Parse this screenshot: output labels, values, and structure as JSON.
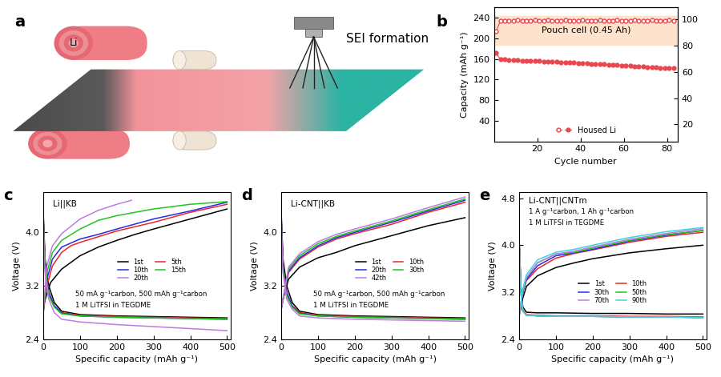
{
  "diagram": {
    "panel": "a",
    "roll_label": "Li",
    "process_label": "SEI formation"
  },
  "chart_data": [
    {
      "panel": "b",
      "type": "line",
      "x_label": "Cycle number",
      "y_label": "Capacity (mAh g⁻¹)",
      "annotations": [
        "Pouch cell (0.45 Ah)"
      ],
      "shaded_range": [
        188,
        244
      ],
      "xlim": [
        0,
        85
      ],
      "xticks": [
        20,
        40,
        60,
        80
      ],
      "ylim": [
        0,
        260
      ],
      "yticks": [
        40,
        80,
        120,
        160,
        200,
        240
      ],
      "y2lim": [
        7,
        109
      ],
      "y2ticks": [
        20,
        40,
        60,
        80,
        100
      ],
      "legend": "lower center",
      "x": [
        1,
        3,
        5,
        7,
        9,
        11,
        13,
        15,
        17,
        19,
        21,
        23,
        25,
        27,
        29,
        31,
        33,
        35,
        37,
        39,
        41,
        43,
        45,
        47,
        49,
        51,
        53,
        55,
        57,
        59,
        61,
        63,
        65,
        67,
        69,
        71,
        73,
        75,
        77,
        79,
        81,
        83
      ],
      "series": [
        {
          "name": "Housed Li",
          "color": "#e8474f",
          "marker": "circle",
          "values": [
            172,
            159,
            159,
            158,
            158,
            157.5,
            157,
            157,
            156.5,
            156,
            156,
            155.5,
            155,
            155,
            154.5,
            154,
            153.5,
            153,
            153,
            152.5,
            152,
            151.5,
            151,
            150.5,
            150,
            149.5,
            149,
            148.5,
            148,
            147.5,
            147,
            146.5,
            146,
            145.5,
            145,
            144.5,
            144,
            143.5,
            143,
            142.5,
            142,
            142
          ]
        },
        {
          "axis": "y2",
          "color": "#e8474f",
          "marker": "open_circle",
          "values": [
            91,
            98.6,
            99.0,
            99.1,
            99.0,
            99.2,
            99.1,
            99.0,
            99.1,
            99.2,
            99.0,
            99.1,
            99.2,
            99.0,
            99.1,
            99.0,
            99.2,
            99.1,
            99.0,
            99.1,
            99.2,
            99.0,
            99.1,
            99.0,
            99.2,
            99.1,
            99.0,
            99.1,
            99.2,
            99.0,
            99.1,
            99.0,
            99.2,
            99.1,
            99.0,
            99.1,
            99.2,
            99.0,
            99.1,
            99.0,
            99.2,
            99.1
          ]
        }
      ]
    },
    {
      "panel": "c",
      "type": "line",
      "title": "Li||KB",
      "annotations": [
        "50 mA g⁻¹carbon, 500 mAh g⁻¹carbon",
        "1 M LiTFSI in TEGDME"
      ],
      "x_label": "Specific capacity (mAh g⁻¹)",
      "y_label": "Voltage (V)",
      "xlim": [
        0,
        510
      ],
      "xticks": [
        0,
        100,
        200,
        300,
        400,
        500
      ],
      "ylim": [
        2.4,
        4.6
      ],
      "yticks": [
        2.4,
        3.2,
        4.0
      ],
      "legend": "center",
      "series": [
        {
          "name": "1st",
          "color": "#000000",
          "x": [
            0,
            5,
            15,
            30,
            50,
            100,
            200,
            300,
            400,
            500,
            null,
            0,
            20,
            50,
            100,
            150,
            200,
            250,
            300,
            400,
            500
          ],
          "values": [
            4.3,
            3.6,
            3.2,
            2.95,
            2.82,
            2.77,
            2.75,
            2.74,
            2.73,
            2.72,
            null,
            2.9,
            3.25,
            3.45,
            3.65,
            3.78,
            3.88,
            3.97,
            4.05,
            4.2,
            4.35
          ]
        },
        {
          "name": "5th",
          "color": "#e8262d",
          "x": [
            0,
            5,
            15,
            30,
            50,
            100,
            200,
            300,
            400,
            500,
            null,
            0,
            10,
            25,
            50,
            75,
            100,
            200,
            300,
            400,
            500
          ],
          "values": [
            4.25,
            3.5,
            3.1,
            2.9,
            2.8,
            2.76,
            2.74,
            2.73,
            2.72,
            2.71,
            null,
            2.8,
            3.2,
            3.5,
            3.7,
            3.8,
            3.85,
            4.02,
            4.15,
            4.3,
            4.42
          ]
        },
        {
          "name": "10th",
          "color": "#2a2ae0",
          "x": [
            0,
            5,
            15,
            30,
            50,
            100,
            200,
            300,
            400,
            500,
            null,
            0,
            10,
            25,
            50,
            100,
            150,
            200,
            300,
            400,
            500
          ],
          "values": [
            4.25,
            3.5,
            3.1,
            2.9,
            2.79,
            2.75,
            2.73,
            2.72,
            2.71,
            2.7,
            null,
            2.8,
            3.3,
            3.6,
            3.78,
            3.9,
            3.97,
            4.05,
            4.2,
            4.32,
            4.45
          ]
        },
        {
          "name": "15th",
          "color": "#22c41c",
          "x": [
            0,
            5,
            15,
            30,
            50,
            100,
            200,
            300,
            400,
            500,
            null,
            0,
            10,
            25,
            50,
            100,
            150,
            200,
            300,
            400,
            500
          ],
          "values": [
            4.2,
            3.45,
            3.05,
            2.88,
            2.78,
            2.75,
            2.73,
            2.72,
            2.71,
            2.7,
            null,
            2.8,
            3.4,
            3.7,
            3.88,
            4.05,
            4.18,
            4.25,
            4.35,
            4.42,
            4.46
          ]
        },
        {
          "name": "20th",
          "color": "#c07ae0",
          "x": [
            0,
            5,
            15,
            30,
            50,
            100,
            200,
            300,
            400,
            500,
            null,
            0,
            10,
            25,
            50,
            100,
            150,
            200,
            240
          ],
          "values": [
            4.2,
            3.4,
            3.0,
            2.8,
            2.7,
            2.66,
            2.62,
            2.59,
            2.56,
            2.53,
            null,
            2.8,
            3.5,
            3.8,
            3.98,
            4.2,
            4.33,
            4.42,
            4.48
          ]
        }
      ]
    },
    {
      "panel": "d",
      "type": "line",
      "title": "Li-CNT||KB",
      "annotations": [
        "50 mA g⁻¹carbon, 500 mAh g⁻¹carbon",
        "1 M LiTFSI in TEGDME"
      ],
      "x_label": "Specific capacity (mAh g⁻¹)",
      "y_label": "Voltage (V)",
      "xlim": [
        0,
        510
      ],
      "xticks": [
        0,
        100,
        200,
        300,
        400,
        500
      ],
      "ylim": [
        2.4,
        4.6
      ],
      "yticks": [
        2.4,
        3.2,
        4.0
      ],
      "legend": "center",
      "series": [
        {
          "name": "1st",
          "color": "#000000",
          "x": [
            0,
            5,
            15,
            30,
            50,
            100,
            200,
            300,
            400,
            500,
            null,
            0,
            20,
            50,
            100,
            150,
            200,
            300,
            400,
            500
          ],
          "values": [
            4.3,
            3.6,
            3.2,
            2.95,
            2.82,
            2.77,
            2.75,
            2.74,
            2.73,
            2.72,
            null,
            2.9,
            3.3,
            3.48,
            3.62,
            3.7,
            3.8,
            3.95,
            4.1,
            4.22
          ]
        },
        {
          "name": "10th",
          "color": "#e8262d",
          "x": [
            0,
            5,
            15,
            30,
            50,
            100,
            200,
            300,
            400,
            500,
            null,
            0,
            20,
            50,
            100,
            150,
            200,
            300,
            400,
            500
          ],
          "values": [
            4.25,
            3.5,
            3.1,
            2.9,
            2.8,
            2.76,
            2.74,
            2.73,
            2.72,
            2.71,
            null,
            2.85,
            3.4,
            3.6,
            3.78,
            3.9,
            3.98,
            4.12,
            4.3,
            4.45
          ]
        },
        {
          "name": "20th",
          "color": "#2a2ae0",
          "x": [
            0,
            5,
            15,
            30,
            50,
            100,
            200,
            300,
            400,
            500,
            null,
            0,
            20,
            50,
            100,
            150,
            200,
            300,
            400,
            500
          ],
          "values": [
            4.25,
            3.5,
            3.1,
            2.9,
            2.79,
            2.75,
            2.73,
            2.72,
            2.71,
            2.7,
            null,
            2.85,
            3.42,
            3.62,
            3.8,
            3.92,
            4.0,
            4.15,
            4.32,
            4.48
          ]
        },
        {
          "name": "30th",
          "color": "#22c41c",
          "x": [
            0,
            5,
            15,
            30,
            50,
            100,
            200,
            300,
            400,
            500,
            null,
            0,
            20,
            50,
            100,
            150,
            200,
            300,
            400,
            500
          ],
          "values": [
            4.2,
            3.45,
            3.05,
            2.88,
            2.78,
            2.75,
            2.73,
            2.72,
            2.71,
            2.7,
            null,
            2.85,
            3.45,
            3.65,
            3.83,
            3.94,
            4.02,
            4.17,
            4.34,
            4.5
          ]
        },
        {
          "name": "42th",
          "color": "#c07ae0",
          "x": [
            0,
            5,
            15,
            30,
            50,
            100,
            200,
            300,
            400,
            500,
            null,
            0,
            20,
            50,
            100,
            150,
            200,
            300,
            400,
            500
          ],
          "values": [
            4.2,
            3.4,
            3.0,
            2.85,
            2.75,
            2.72,
            2.7,
            2.69,
            2.68,
            2.67,
            null,
            2.85,
            3.48,
            3.68,
            3.86,
            3.97,
            4.05,
            4.2,
            4.37,
            4.53
          ]
        }
      ]
    },
    {
      "panel": "e",
      "type": "line",
      "title": "Li-CNT||CNTm",
      "annotations": [
        "1 A g⁻¹carbon, 1 Ah g⁻¹carbon",
        "1 M LiTFSI in TEGDME"
      ],
      "x_label": "Specific capacity (mAh g⁻¹)",
      "y_label": "Voltage (V)",
      "xlim": [
        0,
        510
      ],
      "xticks": [
        0,
        100,
        200,
        300,
        400,
        500
      ],
      "ylim": [
        2.4,
        4.9
      ],
      "yticks": [
        2.4,
        3.2,
        4.0,
        4.8
      ],
      "legend": "center",
      "series": [
        {
          "name": "1st",
          "color": "#000000",
          "x": [
            0,
            5,
            10,
            20,
            50,
            100,
            200,
            300,
            400,
            500,
            null,
            0,
            10,
            20,
            50,
            100,
            150,
            200,
            300,
            400,
            500
          ],
          "values": [
            4.1,
            3.3,
            2.95,
            2.86,
            2.85,
            2.85,
            2.84,
            2.84,
            2.83,
            2.83,
            null,
            2.8,
            3.1,
            3.3,
            3.48,
            3.62,
            3.7,
            3.77,
            3.87,
            3.94,
            4.0
          ]
        },
        {
          "name": "10th",
          "color": "#e8262d",
          "x": [
            0,
            5,
            10,
            20,
            50,
            100,
            200,
            300,
            400,
            500,
            null,
            0,
            10,
            20,
            50,
            100,
            150,
            200,
            300,
            400,
            500
          ],
          "values": [
            4.1,
            3.2,
            2.9,
            2.82,
            2.81,
            2.8,
            2.8,
            2.79,
            2.79,
            2.78,
            null,
            2.8,
            3.2,
            3.4,
            3.6,
            3.78,
            3.86,
            3.92,
            4.05,
            4.15,
            4.22
          ]
        },
        {
          "name": "30th",
          "color": "#2a2ae0",
          "x": [
            0,
            5,
            10,
            20,
            50,
            100,
            200,
            300,
            400,
            500,
            null,
            0,
            10,
            20,
            50,
            100,
            150,
            200,
            300,
            400,
            500
          ],
          "values": [
            4.1,
            3.2,
            2.88,
            2.81,
            2.8,
            2.79,
            2.79,
            2.78,
            2.78,
            2.77,
            null,
            2.8,
            3.2,
            3.42,
            3.65,
            3.82,
            3.87,
            3.93,
            4.07,
            4.17,
            4.25
          ]
        },
        {
          "name": "50th",
          "color": "#22c41c",
          "x": [
            0,
            5,
            10,
            20,
            50,
            100,
            200,
            300,
            400,
            500,
            null,
            0,
            10,
            20,
            50,
            100,
            150,
            200,
            300,
            400,
            500
          ],
          "values": [
            4.1,
            3.2,
            2.88,
            2.81,
            2.8,
            2.79,
            2.79,
            2.78,
            2.78,
            2.77,
            null,
            2.8,
            3.22,
            3.45,
            3.7,
            3.85,
            3.88,
            3.95,
            4.08,
            4.18,
            4.25
          ]
        },
        {
          "name": "70th",
          "color": "#c07ae0",
          "x": [
            0,
            5,
            10,
            20,
            50,
            100,
            200,
            300,
            400,
            500,
            null,
            0,
            10,
            20,
            50,
            100,
            150,
            200,
            300,
            400,
            500
          ],
          "values": [
            4.1,
            3.2,
            2.88,
            2.81,
            2.8,
            2.79,
            2.79,
            2.78,
            2.78,
            2.77,
            null,
            2.8,
            3.22,
            3.45,
            3.7,
            3.85,
            3.9,
            3.97,
            4.1,
            4.2,
            4.28
          ]
        },
        {
          "name": "90th",
          "color": "#3cd3e0",
          "x": [
            0,
            5,
            10,
            20,
            50,
            100,
            200,
            300,
            400,
            500,
            null,
            0,
            10,
            20,
            50,
            100,
            150,
            200,
            300,
            400,
            500
          ],
          "values": [
            4.1,
            3.2,
            2.88,
            2.81,
            2.8,
            2.79,
            2.79,
            2.78,
            2.78,
            2.77,
            null,
            2.8,
            3.25,
            3.5,
            3.75,
            3.88,
            3.93,
            4.0,
            4.13,
            4.23,
            4.3
          ]
        }
      ]
    }
  ]
}
